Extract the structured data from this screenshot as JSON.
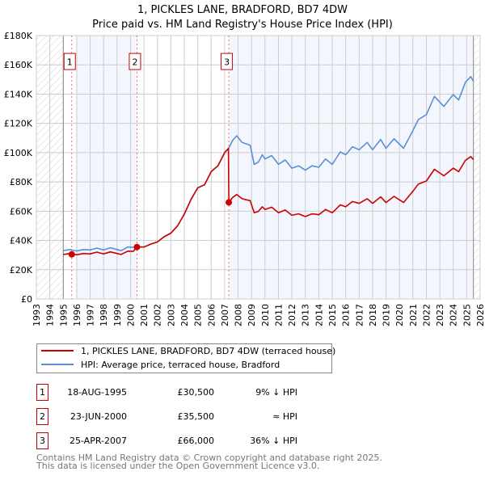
{
  "chart_data": {
    "type": "line",
    "title": "1, PICKLES LANE, BRADFORD, BD7 4DW",
    "subtitle": "Price paid vs. HM Land Registry's House Price Index (HPI)",
    "xlim": [
      1993,
      2026
    ],
    "ylim": [
      0,
      180000
    ],
    "grid": true,
    "x_ticks": [
      "1993",
      "1994",
      "1995",
      "1996",
      "1997",
      "1998",
      "1999",
      "2000",
      "2001",
      "2002",
      "2003",
      "2004",
      "2005",
      "2006",
      "2007",
      "2008",
      "2009",
      "2010",
      "2011",
      "2012",
      "2013",
      "2014",
      "2015",
      "2016",
      "2017",
      "2018",
      "2019",
      "2020",
      "2021",
      "2022",
      "2023",
      "2024",
      "2025",
      "2026"
    ],
    "y_ticks": [
      {
        "value": 0,
        "label": "£0"
      },
      {
        "value": 20000,
        "label": "£20K"
      },
      {
        "value": 40000,
        "label": "£40K"
      },
      {
        "value": 60000,
        "label": "£60K"
      },
      {
        "value": 80000,
        "label": "£80K"
      },
      {
        "value": 100000,
        "label": "£100K"
      },
      {
        "value": 120000,
        "label": "£120K"
      },
      {
        "value": 140000,
        "label": "£140K"
      },
      {
        "value": 160000,
        "label": "£160K"
      },
      {
        "value": 180000,
        "label": "£180K"
      }
    ],
    "hatched_ranges": [
      [
        1993,
        1995
      ],
      [
        2025.5,
        2026
      ]
    ],
    "shaded_ranges": [
      [
        1996,
        2000.48
      ],
      [
        2007.31,
        2025.5
      ]
    ],
    "series": [
      {
        "name": "1, PICKLES LANE, BRADFORD, BD7 4DW (terraced house)",
        "color": "#cc0000",
        "points": [
          [
            1995.0,
            30400
          ],
          [
            1995.5,
            31100
          ],
          [
            1996,
            30200
          ],
          [
            1996.5,
            31100
          ],
          [
            1997,
            30800
          ],
          [
            1997.5,
            32000
          ],
          [
            1998,
            30800
          ],
          [
            1998.5,
            32200
          ],
          [
            1999,
            31100
          ],
          [
            1999.3,
            30400
          ],
          [
            1999.8,
            32700
          ],
          [
            2000.2,
            32500
          ],
          [
            2000.48,
            35500
          ],
          [
            2001,
            35500
          ],
          [
            2001.5,
            37500
          ],
          [
            2002,
            39000
          ],
          [
            2002.5,
            42500
          ],
          [
            2003,
            45000
          ],
          [
            2003.5,
            50000
          ],
          [
            2004,
            58000
          ],
          [
            2004.5,
            68000
          ],
          [
            2005,
            76000
          ],
          [
            2005.5,
            78000
          ],
          [
            2006,
            87000
          ],
          [
            2006.5,
            91000
          ],
          [
            2007,
            100000
          ],
          [
            2007.28,
            103000
          ],
          [
            2007.31,
            66000
          ],
          [
            2007.6,
            69400
          ],
          [
            2007.9,
            71400
          ],
          [
            2008.3,
            68500
          ],
          [
            2008.6,
            67800
          ],
          [
            2008.9,
            67200
          ],
          [
            2009.2,
            58900
          ],
          [
            2009.5,
            59800
          ],
          [
            2009.8,
            63000
          ],
          [
            2010,
            61200
          ],
          [
            2010.5,
            62700
          ],
          [
            2011,
            58900
          ],
          [
            2011.5,
            60800
          ],
          [
            2012,
            57200
          ],
          [
            2012.5,
            58200
          ],
          [
            2013,
            56300
          ],
          [
            2013.5,
            58200
          ],
          [
            2014,
            57600
          ],
          [
            2014.5,
            61200
          ],
          [
            2015,
            58900
          ],
          [
            2015.6,
            64300
          ],
          [
            2016,
            63000
          ],
          [
            2016.5,
            66600
          ],
          [
            2017,
            65300
          ],
          [
            2017.6,
            68500
          ],
          [
            2018,
            65300
          ],
          [
            2018.6,
            69800
          ],
          [
            2019,
            65900
          ],
          [
            2019.6,
            70100
          ],
          [
            2020.3,
            65900
          ],
          [
            2021,
            73600
          ],
          [
            2021.4,
            78500
          ],
          [
            2022,
            80600
          ],
          [
            2022.6,
            88600
          ],
          [
            2023.3,
            84200
          ],
          [
            2024,
            89400
          ],
          [
            2024.4,
            87000
          ],
          [
            2024.9,
            94700
          ],
          [
            2025.3,
            97300
          ],
          [
            2025.5,
            95200
          ]
        ]
      },
      {
        "name": "HPI: Average price, terraced house, Bradford",
        "color": "#5b8fd4",
        "points": [
          [
            1995.0,
            33000
          ],
          [
            1995.5,
            33800
          ],
          [
            1996,
            32800
          ],
          [
            1996.5,
            33800
          ],
          [
            1997,
            33500
          ],
          [
            1997.5,
            34800
          ],
          [
            1998,
            33500
          ],
          [
            1998.5,
            35000
          ],
          [
            1999,
            33800
          ],
          [
            1999.3,
            33000
          ],
          [
            1999.8,
            35500
          ],
          [
            2000.2,
            35300
          ],
          [
            2000.5,
            35500
          ],
          [
            2001,
            35500
          ],
          [
            2001.5,
            37500
          ],
          [
            2002,
            39000
          ],
          [
            2002.5,
            42500
          ],
          [
            2003,
            45000
          ],
          [
            2003.5,
            50000
          ],
          [
            2004,
            58000
          ],
          [
            2004.5,
            68000
          ],
          [
            2005,
            76000
          ],
          [
            2005.5,
            78000
          ],
          [
            2006,
            87000
          ],
          [
            2006.5,
            91000
          ],
          [
            2007,
            100000
          ],
          [
            2007.3,
            103000
          ],
          [
            2007.6,
            108500
          ],
          [
            2007.9,
            111500
          ],
          [
            2008.3,
            107000
          ],
          [
            2008.6,
            106000
          ],
          [
            2008.9,
            105000
          ],
          [
            2009.2,
            92000
          ],
          [
            2009.5,
            93500
          ],
          [
            2009.8,
            98500
          ],
          [
            2010,
            95700
          ],
          [
            2010.5,
            98000
          ],
          [
            2011,
            92000
          ],
          [
            2011.5,
            95000
          ],
          [
            2012,
            89400
          ],
          [
            2012.5,
            91000
          ],
          [
            2013,
            88000
          ],
          [
            2013.5,
            91000
          ],
          [
            2014,
            90000
          ],
          [
            2014.5,
            95700
          ],
          [
            2015,
            92000
          ],
          [
            2015.6,
            100500
          ],
          [
            2016,
            98500
          ],
          [
            2016.5,
            104000
          ],
          [
            2017,
            102000
          ],
          [
            2017.6,
            107000
          ],
          [
            2018,
            102000
          ],
          [
            2018.6,
            109000
          ],
          [
            2019,
            103000
          ],
          [
            2019.6,
            109500
          ],
          [
            2020.3,
            103000
          ],
          [
            2021,
            115000
          ],
          [
            2021.4,
            122600
          ],
          [
            2022,
            126000
          ],
          [
            2022.6,
            138400
          ],
          [
            2023.3,
            131600
          ],
          [
            2024,
            139700
          ],
          [
            2024.4,
            136000
          ],
          [
            2024.9,
            148000
          ],
          [
            2025.3,
            152000
          ],
          [
            2025.5,
            148700
          ]
        ]
      }
    ],
    "sales": [
      {
        "id": "1",
        "x": 1995.63,
        "value": 30500
      },
      {
        "id": "2",
        "x": 2000.48,
        "value": 35500
      },
      {
        "id": "3",
        "x": 2007.31,
        "value": 66000
      }
    ],
    "marker_label_value": 162000
  },
  "legend": {
    "entries": [
      {
        "label": "1, PICKLES LANE, BRADFORD, BD7 4DW (terraced house)",
        "color": "#cc0000"
      },
      {
        "label": "HPI: Average price, terraced house, Bradford",
        "color": "#5b8fd4"
      }
    ]
  },
  "table": {
    "rows": [
      {
        "id": "1",
        "date": "18-AUG-1995",
        "price": "£30,500",
        "hpi": "9% ↓ HPI"
      },
      {
        "id": "2",
        "date": "23-JUN-2000",
        "price": "£35,500",
        "hpi": "≈ HPI"
      },
      {
        "id": "3",
        "date": "25-APR-2007",
        "price": "£66,000",
        "hpi": "36% ↓ HPI"
      }
    ]
  },
  "footer": {
    "line1": "Contains HM Land Registry data © Crown copyright and database right 2025.",
    "line2": "This data is licensed under the Open Government Licence v3.0."
  }
}
